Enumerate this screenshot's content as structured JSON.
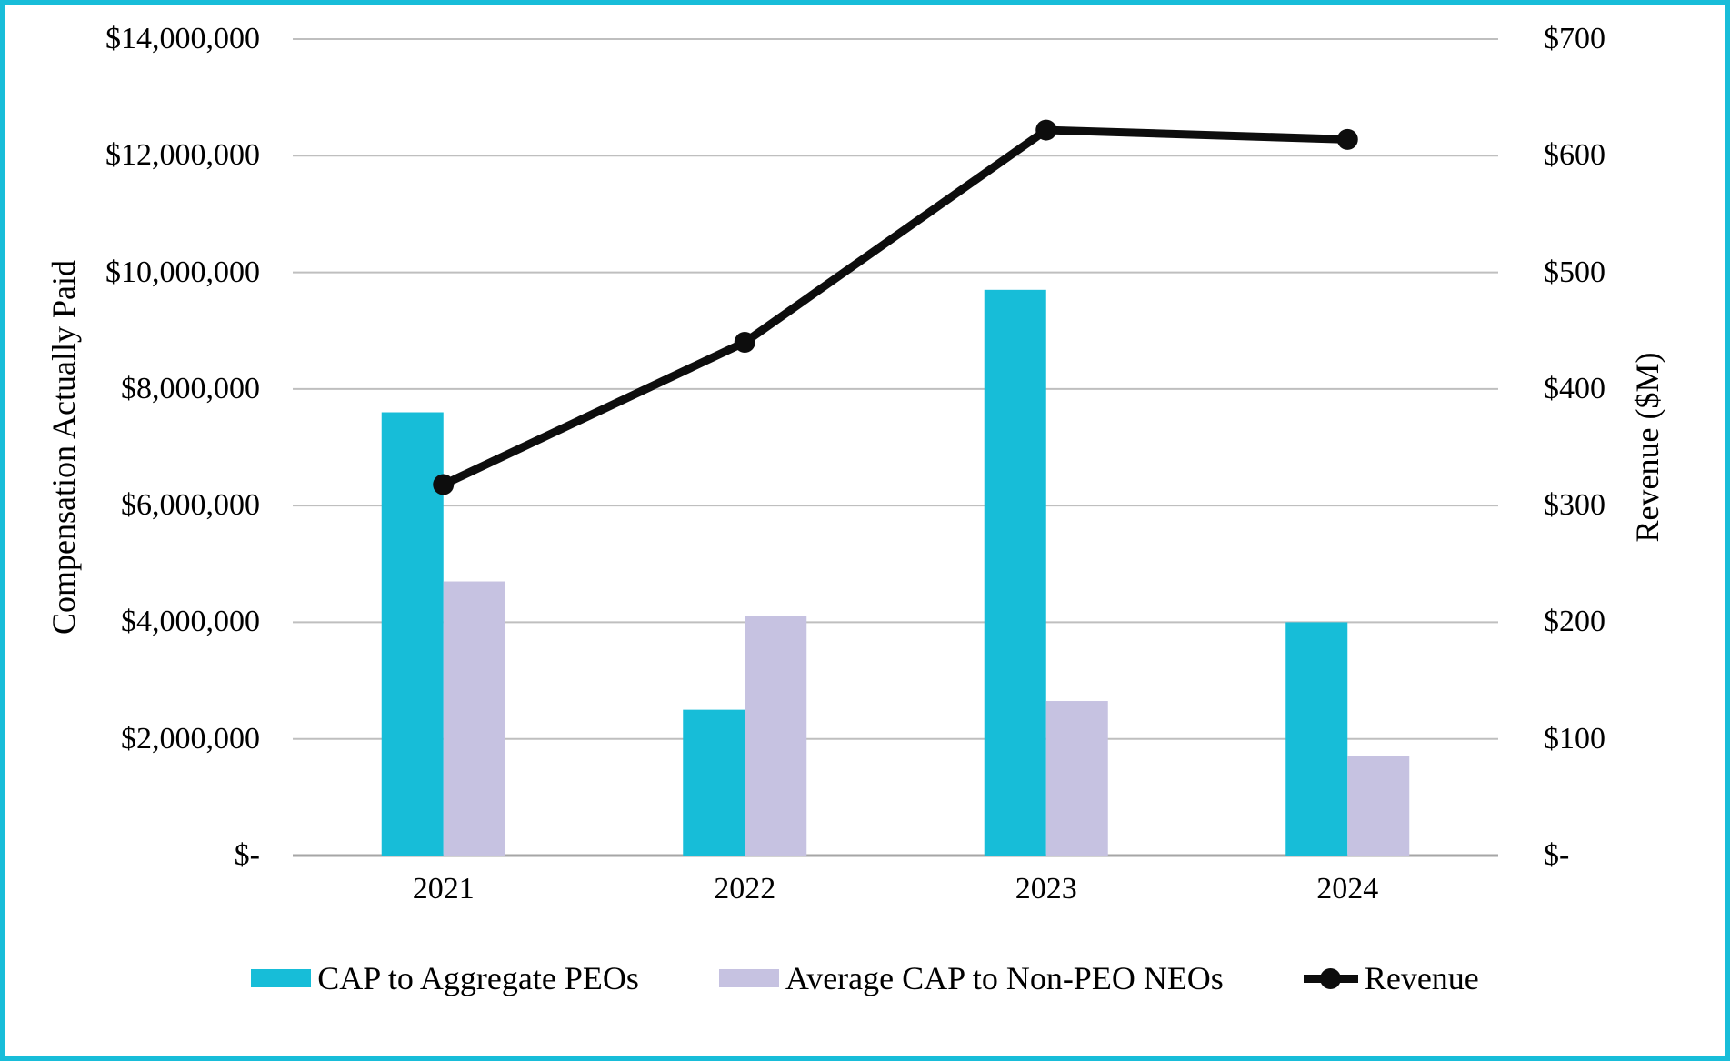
{
  "chart_data": {
    "type": "bar",
    "subtype": "combo-bar-line-dual-axis",
    "categories": [
      "2021",
      "2022",
      "2023",
      "2024"
    ],
    "series": [
      {
        "name": "CAP to Aggregate PEOs",
        "type": "bar",
        "axis": "left",
        "color": "#17bdd8",
        "values": [
          7600000,
          2500000,
          9700000,
          4000000
        ]
      },
      {
        "name": "Average CAP to Non-PEO NEOs",
        "type": "bar",
        "axis": "left",
        "color": "#c6c2e1",
        "values": [
          4700000,
          4100000,
          2650000,
          1700000
        ]
      },
      {
        "name": "Revenue",
        "type": "line",
        "axis": "right",
        "color": "#0d0d0d",
        "values": [
          318,
          440,
          622,
          614
        ]
      }
    ],
    "left_axis": {
      "title": "Compensation Actually Paid",
      "min": 0,
      "max": 14000000,
      "tick_step": 2000000,
      "tick_labels_top_to_bottom": [
        "$14,000,000",
        "$12,000,000",
        "$10,000,000",
        "$8,000,000",
        "$6,000,000",
        "$4,000,000",
        "$2,000,000",
        "$-"
      ]
    },
    "right_axis": {
      "title": "Revenue ($M)",
      "min": 0,
      "max": 700,
      "tick_step": 100,
      "tick_labels_top_to_bottom": [
        "$700",
        "$600",
        "$500",
        "$400",
        "$300",
        "$200",
        "$100",
        "$-"
      ]
    },
    "grid": true,
    "legend_position": "bottom",
    "colors": {
      "frame_border": "#18bdd9",
      "gridline": "#bfbfbf",
      "axis_line": "#a6a6a6",
      "text": "#000000"
    }
  }
}
